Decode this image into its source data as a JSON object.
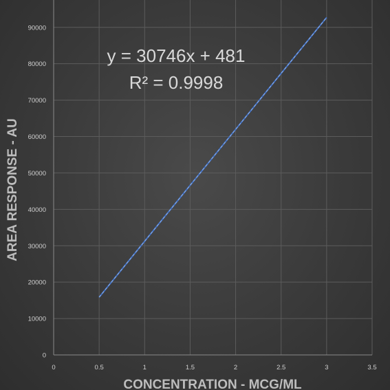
{
  "chart_data": {
    "type": "line",
    "title": "",
    "xlabel": "CONCENTRATION - MCG/ML",
    "ylabel": "AREA RESPONSE - AU",
    "xlim": [
      0,
      3.5
    ],
    "ylim": [
      0,
      90000
    ],
    "x_ticks": [
      "0",
      "0.5",
      "1",
      "1.5",
      "2",
      "2.5",
      "3",
      "3.5"
    ],
    "y_ticks": [
      "0",
      "10000",
      "20000",
      "30000",
      "40000",
      "50000",
      "60000",
      "70000",
      "80000",
      "90000"
    ],
    "grid": true,
    "series": [
      {
        "x": [
          0.5,
          3
        ],
        "y": [
          15854,
          92719
        ],
        "color": "#4472c4"
      }
    ],
    "trendline": {
      "color": "#8fb0e6",
      "style": "dashed",
      "equation": "y = 30746x + 481",
      "r_squared": "R² = 0.9998"
    }
  }
}
